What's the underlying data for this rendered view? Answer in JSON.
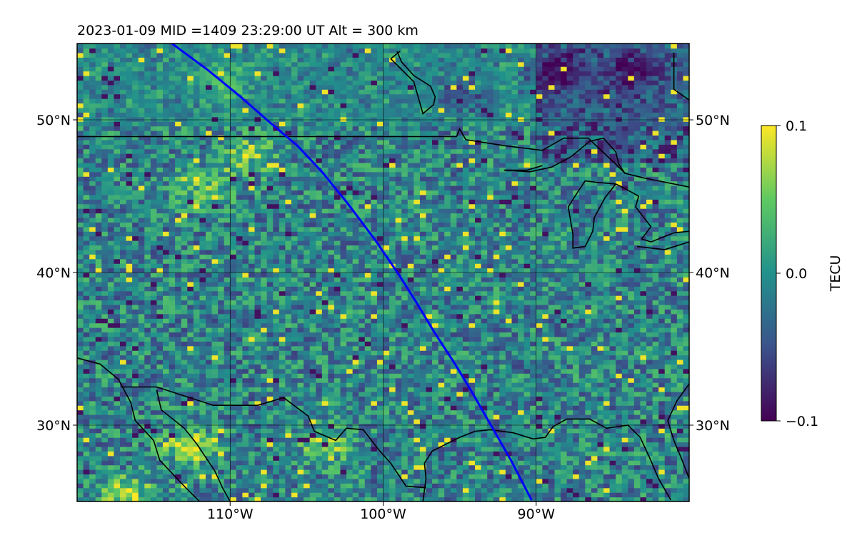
{
  "chart_data": {
    "type": "heatmap",
    "title": "2023-01-09  MID =1409    23:29:00  UT  Alt = 300 km",
    "xlim": [
      -120,
      -80
    ],
    "ylim": [
      25,
      55
    ],
    "xticks": [
      {
        "value": -110,
        "label": "110°W"
      },
      {
        "value": -100,
        "label": "100°W"
      },
      {
        "value": -90,
        "label": "90°W"
      }
    ],
    "yticks": [
      {
        "value": 30,
        "label": "30°N"
      },
      {
        "value": 40,
        "label": "40°N"
      },
      {
        "value": 50,
        "label": "50°N"
      }
    ],
    "grid": true,
    "colormap": "viridis",
    "colorbar": {
      "label": "TECU",
      "vmin": -0.1,
      "vmax": 0.1,
      "ticks": [
        {
          "value": 0.1,
          "label": "0.1"
        },
        {
          "value": 0.0,
          "label": "0.0"
        },
        {
          "value": -0.1,
          "label": "−0.1"
        }
      ]
    },
    "field_description": "Gridded TEC perturbation values mostly near 0.0 TECU with positive patches (up to 0.1) in the west/southwest and negative values (down to -0.1) over the northeast",
    "field_patches": [
      {
        "lon": -112,
        "lat": 45.5,
        "value": 0.08
      },
      {
        "lon": -109,
        "lat": 47.5,
        "value": 0.07
      },
      {
        "lon": -113,
        "lat": 28.5,
        "value": 0.09
      },
      {
        "lon": -104,
        "lat": 28.6,
        "value": 0.08
      },
      {
        "lon": -117,
        "lat": 25.3,
        "value": 0.1
      },
      {
        "lon": -111,
        "lat": 52.5,
        "value": 0.05
      },
      {
        "lon": -89,
        "lat": 53,
        "value": -0.08
      },
      {
        "lon": -84,
        "lat": 53,
        "value": -0.06
      },
      {
        "lon": -95,
        "lat": 51.5,
        "value": -0.05
      }
    ],
    "track": {
      "color": "#0000ff",
      "lon": [
        -113.8,
        -111.5,
        -109.3,
        -107.6,
        -105.6,
        -104.0,
        -102.3,
        -100.5,
        -99.0,
        -97.8,
        -96.6,
        -95.3,
        -94.1,
        -92.9,
        -91.7,
        -90.3
      ],
      "lat": [
        55.0,
        53.3,
        51.5,
        50.0,
        48.3,
        46.6,
        44.5,
        42.1,
        39.9,
        38.0,
        36.0,
        34.0,
        32.0,
        29.9,
        27.8,
        25.1
      ]
    }
  },
  "map_outlines": [
    [
      [
        -120,
        48.9
      ],
      [
        -95.2,
        48.9
      ],
      [
        -95.0,
        49.4
      ],
      [
        -94.6,
        48.7
      ],
      [
        -92.0,
        48.3
      ],
      [
        -89.6,
        48.0
      ],
      [
        -88.2,
        48.8
      ],
      [
        -86.6,
        48.8
      ],
      [
        -84.8,
        47.1
      ],
      [
        -84.2,
        46.5
      ],
      [
        -83.0,
        46.2
      ],
      [
        -80,
        45.6
      ]
    ],
    [
      [
        -81.0,
        54.4
      ],
      [
        -81.0,
        52.0
      ],
      [
        -80,
        51.3
      ]
    ],
    [
      [
        -99.1,
        54.5
      ],
      [
        -98.8,
        53.8
      ],
      [
        -98.0,
        52.9
      ],
      [
        -96.9,
        52.2
      ],
      [
        -96.6,
        51.5
      ],
      [
        -96.7,
        51.0
      ],
      [
        -97.4,
        50.4
      ],
      [
        -98.0,
        52.5
      ],
      [
        -99.1,
        53.6
      ],
      [
        -99.5,
        54.0
      ],
      [
        -98.9,
        54.5
      ]
    ],
    [
      [
        -89.6,
        47.0
      ],
      [
        -90.6,
        46.7
      ],
      [
        -92.1,
        46.7
      ],
      [
        -90.4,
        46.6
      ],
      [
        -89.0,
        46.9
      ],
      [
        -87.7,
        47.6
      ],
      [
        -86.5,
        48.6
      ],
      [
        -85.6,
        48.8
      ],
      [
        -84.8,
        47.9
      ],
      [
        -84.6,
        47.1
      ],
      [
        -84.2,
        46.5
      ]
    ],
    [
      [
        -84.8,
        45.8
      ],
      [
        -86.0,
        45.9
      ],
      [
        -86.8,
        46.0
      ],
      [
        -87.4,
        45.1
      ],
      [
        -87.9,
        44.3
      ],
      [
        -87.6,
        42.5
      ],
      [
        -87.6,
        41.6
      ],
      [
        -86.8,
        41.7
      ],
      [
        -86.3,
        42.7
      ],
      [
        -86.2,
        43.6
      ],
      [
        -85.5,
        44.9
      ],
      [
        -84.8,
        45.8
      ]
    ],
    [
      [
        -84.8,
        45.8
      ],
      [
        -84.2,
        45.5
      ],
      [
        -83.3,
        45.0
      ],
      [
        -83.5,
        44.3
      ],
      [
        -82.5,
        43.0
      ],
      [
        -83.1,
        42.2
      ],
      [
        -82.5,
        42.0
      ],
      [
        -81.0,
        42.6
      ],
      [
        -80,
        42.7
      ]
    ],
    [
      [
        -83.4,
        41.7
      ],
      [
        -81.6,
        41.5
      ],
      [
        -80,
        42.0
      ]
    ],
    [
      [
        -120,
        34.4
      ],
      [
        -118.5,
        34.0
      ],
      [
        -117.3,
        33.0
      ],
      [
        -116.5,
        31.5
      ],
      [
        -116.2,
        30.3
      ],
      [
        -115.0,
        29.0
      ],
      [
        -114.6,
        27.7
      ],
      [
        -113.0,
        26.0
      ],
      [
        -112.0,
        25.0
      ]
    ],
    [
      [
        -117.1,
        32.5
      ],
      [
        -114.8,
        32.5
      ],
      [
        -111.1,
        31.3
      ],
      [
        -108.2,
        31.3
      ],
      [
        -106.5,
        31.8
      ],
      [
        -104.9,
        30.6
      ],
      [
        -104.5,
        29.6
      ],
      [
        -103.1,
        29.0
      ],
      [
        -102.4,
        29.8
      ],
      [
        -101.3,
        29.7
      ],
      [
        -100.3,
        28.4
      ],
      [
        -99.5,
        27.5
      ],
      [
        -98.5,
        26.0
      ],
      [
        -97.2,
        25.9
      ]
    ],
    [
      [
        -114.8,
        32.3
      ],
      [
        -114.5,
        31.0
      ],
      [
        -113.0,
        29.8
      ],
      [
        -112.2,
        28.8
      ],
      [
        -111.0,
        27.0
      ],
      [
        -110.5,
        25.9
      ],
      [
        -110.0,
        25.0
      ]
    ],
    [
      [
        -97.4,
        25.0
      ],
      [
        -97.2,
        26.5
      ],
      [
        -97.3,
        27.5
      ],
      [
        -96.8,
        28.3
      ],
      [
        -95.0,
        29.2
      ],
      [
        -94.0,
        29.6
      ],
      [
        -93.0,
        29.7
      ],
      [
        -91.5,
        29.5
      ],
      [
        -90.2,
        29.1
      ],
      [
        -89.4,
        29.2
      ],
      [
        -88.9,
        29.9
      ],
      [
        -88.0,
        30.4
      ],
      [
        -86.5,
        30.4
      ],
      [
        -85.4,
        29.8
      ],
      [
        -84.0,
        30.0
      ],
      [
        -83.2,
        29.2
      ],
      [
        -82.6,
        27.9
      ],
      [
        -82.0,
        26.5
      ],
      [
        -81.2,
        25.1
      ]
    ],
    [
      [
        -80,
        32.7
      ],
      [
        -80.8,
        31.6
      ],
      [
        -81.4,
        30.3
      ],
      [
        -81.0,
        29.0
      ],
      [
        -80.5,
        27.8
      ],
      [
        -80.0,
        26.5
      ]
    ]
  ]
}
